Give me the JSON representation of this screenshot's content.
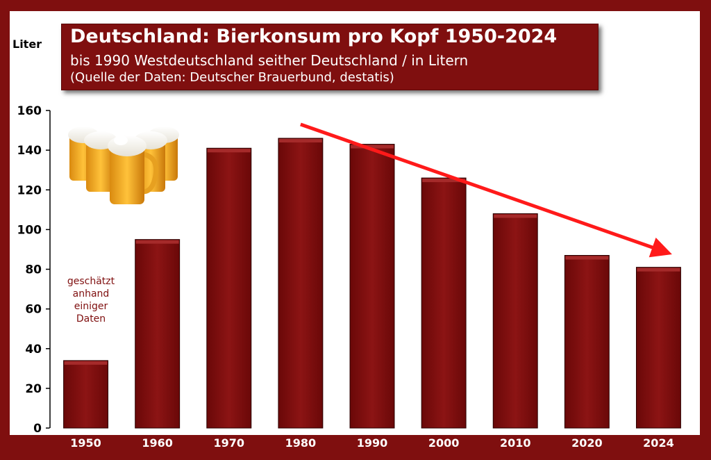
{
  "chart_data": {
    "type": "bar",
    "title": "Deutschland: Bierkonsum pro Kopf 1950-2024",
    "subtitle": "bis 1990 Westdeutschland seither Deutschland / in Litern",
    "source": "(Quelle der Daten: Deutscher Brauerbund, destatis)",
    "ylabel": "Liter",
    "categories": [
      "1950",
      "1960",
      "1970",
      "1980",
      "1990",
      "2000",
      "2010",
      "2020",
      "2024"
    ],
    "values": [
      34,
      95,
      141,
      146,
      143,
      126,
      108,
      87,
      81
    ],
    "ylim": [
      0,
      160
    ],
    "yticks": [
      0,
      20,
      40,
      60,
      80,
      100,
      120,
      140,
      160
    ],
    "annotation": "geschätzt anhand einiger Daten",
    "trend_arrow": {
      "from_category": "1980",
      "to_category": "2024",
      "color": "#ff1a1a"
    },
    "grid": false,
    "legend": "none",
    "bar_color": "#7f0f0f"
  },
  "annotation_lines": [
    "geschätzt",
    "anhand",
    "einiger",
    "Daten"
  ],
  "decoration": {
    "beer_mugs_icon": "beer-mugs-icon"
  }
}
